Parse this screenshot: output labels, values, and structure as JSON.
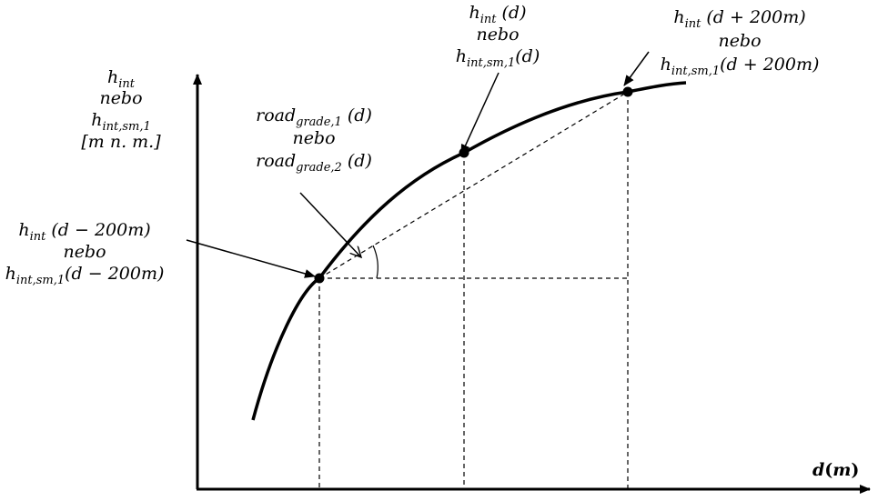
{
  "axes": {
    "y_label": {
      "line1_base": "h",
      "line1_sub": "int",
      "line2": "nebo",
      "line3_base": "h",
      "line3_sub": "int,sm,1",
      "line4": "[m n. m.]"
    },
    "x_label": {
      "base": "d",
      "unit": "m"
    }
  },
  "annotations": {
    "point_left": {
      "line1_base": "h",
      "line1_sub": "int",
      "line1_arg": " (d − 200m)",
      "line2": "nebo",
      "line3_base": "h",
      "line3_sub": "int,sm,1",
      "line3_arg": "(d − 200m)"
    },
    "grade": {
      "line1_base": "road",
      "line1_sub": "grade,1",
      "line1_arg": " (d)",
      "line2": "nebo",
      "line3_base": "road",
      "line3_sub": "grade,2",
      "line3_arg": " (d)"
    },
    "point_mid": {
      "line1_base": "h",
      "line1_sub": "int",
      "line1_arg": " (d)",
      "line2": "nebo",
      "line3_base": "h",
      "line3_sub": "int,sm,1",
      "line3_arg": "(d)"
    },
    "point_right": {
      "line1_base": "h",
      "line1_sub": "int",
      "line1_arg": " (d + 200m)",
      "line2": "nebo",
      "line3_base": "h",
      "line3_sub": "int,sm,1",
      "line3_arg": "(d + 200m)"
    }
  }
}
